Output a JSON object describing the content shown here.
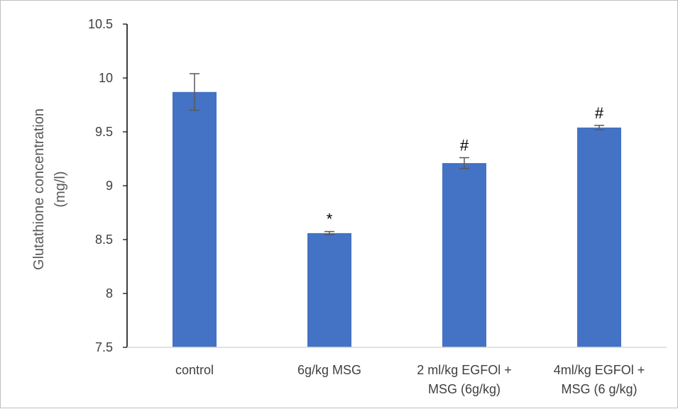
{
  "chart_data": {
    "type": "bar",
    "title": "",
    "ylabel_lines": [
      "Glutathione concentration",
      "(mg/l)"
    ],
    "xlabel": "",
    "ylim": [
      7.5,
      10.5
    ],
    "yticks": [
      "7.5",
      "8",
      "8.5",
      "9",
      "9.5",
      "10",
      "10.5"
    ],
    "ytick_values": [
      7.5,
      8,
      8.5,
      9,
      9.5,
      10,
      10.5
    ],
    "categories": [
      [
        "control"
      ],
      [
        "6g/kg MSG"
      ],
      [
        "2 ml/kg EGFOl +",
        "MSG (6g/kg)"
      ],
      [
        "4ml/kg EGFOl +",
        "MSG (6 g/kg)"
      ]
    ],
    "values": [
      9.87,
      8.56,
      9.21,
      9.54
    ],
    "errors": [
      0.17,
      0.015,
      0.05,
      0.02
    ],
    "annotations": [
      "",
      "*",
      "#",
      "#"
    ],
    "bar_color": "#4472c4",
    "grid": false,
    "legend": "none"
  }
}
